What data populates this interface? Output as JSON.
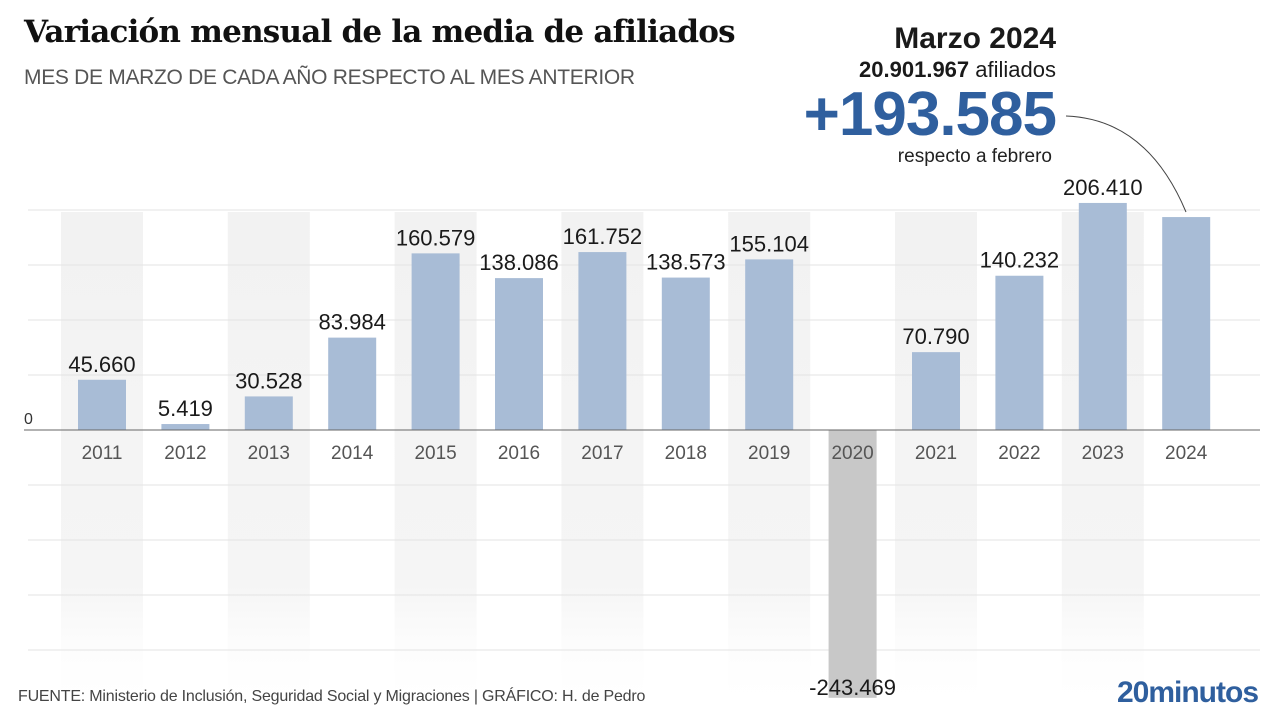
{
  "header": {
    "title": "Variación mensual de la media de afiliados",
    "subtitle": "MES DE MARZO DE CADA AÑO RESPECTO AL MES ANTERIOR"
  },
  "callout": {
    "month": "Marzo 2024",
    "total_value": "20.901.967",
    "total_unit": "afiliados",
    "change": "+193.585",
    "change_label": "respecto a febrero"
  },
  "footer": {
    "source": "FUENTE: Ministerio de Inclusión, Seguridad Social y Migraciones  |  GRÁFICO: H. de Pedro",
    "logo": "20minutos"
  },
  "colors": {
    "positive_bar": "#a8bcd6",
    "negative_bar": "#c8c8c8",
    "accent": "#2f5f9e"
  },
  "chart_data": {
    "type": "bar",
    "title": "Variación mensual de la media de afiliados",
    "subtitle": "MES DE MARZO DE CADA AÑO RESPECTO AL MES ANTERIOR",
    "xlabel": "",
    "ylabel": "",
    "categories": [
      "2011",
      "2012",
      "2013",
      "2014",
      "2015",
      "2016",
      "2017",
      "2018",
      "2019",
      "2020",
      "2021",
      "2022",
      "2023",
      "2024"
    ],
    "values": [
      45660,
      5419,
      30528,
      83984,
      160579,
      138086,
      161752,
      138573,
      155104,
      -243469,
      70790,
      140232,
      206410,
      193585
    ],
    "value_labels": [
      "45.660",
      "5.419",
      "30.528",
      "83.984",
      "160.579",
      "138.086",
      "161.752",
      "138.573",
      "155.104",
      "-243.469",
      "70.790",
      "140.232",
      "206.410",
      ""
    ],
    "ylim": [
      -250000,
      200000
    ],
    "gridlines": [
      200000,
      150000,
      100000,
      50000,
      0,
      -50000,
      -100000,
      -150000,
      -200000
    ],
    "y_tick_labels": [
      {
        "value": 0,
        "label": "0"
      }
    ],
    "grid": true,
    "legend": "none",
    "annotation": {
      "target": "2024",
      "text": "+193.585 respecto a febrero"
    }
  }
}
